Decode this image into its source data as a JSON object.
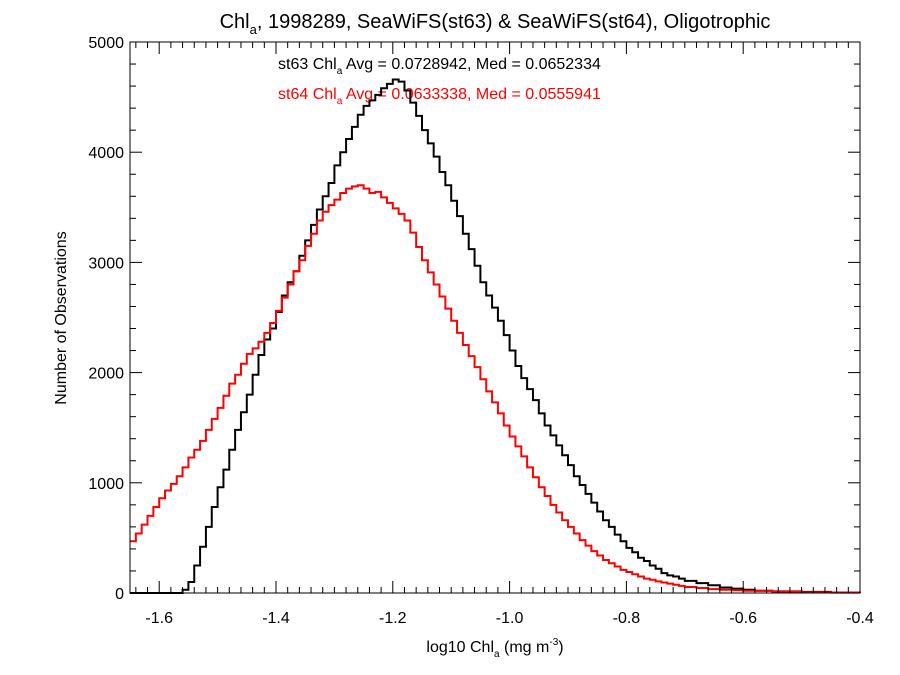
{
  "chart_data": {
    "type": "line",
    "title": {
      "main": "Chl",
      "sub": "a",
      "rest": ", 1998289, SeaWiFS(st63) & SeaWiFS(st64), Oligotrophic"
    },
    "xlabel": {
      "main": "log10 Chl",
      "sub": "a",
      "rest": " (mg m",
      "sup": "-3",
      "end": ")"
    },
    "ylabel": "Number of Observations",
    "xlim": [
      -1.65,
      -0.4
    ],
    "ylim": [
      0,
      5000
    ],
    "x_ticks": [
      -1.6,
      -1.4,
      -1.2,
      -1.0,
      -0.8,
      -0.6,
      -0.4
    ],
    "x_tick_labels": [
      "-1.6",
      "-1.4",
      "-1.2",
      "-1.0",
      "-0.8",
      "-0.6",
      "-0.4"
    ],
    "y_ticks": [
      0,
      1000,
      2000,
      3000,
      4000,
      5000
    ],
    "y_tick_labels": [
      "0",
      "1000",
      "2000",
      "3000",
      "4000",
      "5000"
    ],
    "grid": false,
    "step": true,
    "annotations": [
      {
        "color": "#000000",
        "prefix": "st63 Chl",
        "sub": "a",
        "suffix": " Avg = 0.0728942, Med = 0.0652334"
      },
      {
        "color": "#ff0000",
        "prefix": "st64 Chl",
        "sub": "a",
        "suffix": " Avg = 0.0633338, Med = 0.0555941"
      }
    ],
    "series": [
      {
        "color": "#000000",
        "points": [
          [
            -1.65,
            0
          ],
          [
            -1.57,
            0
          ],
          [
            -1.56,
            30
          ],
          [
            -1.55,
            100
          ],
          [
            -1.54,
            250
          ],
          [
            -1.53,
            420
          ],
          [
            -1.52,
            600
          ],
          [
            -1.51,
            780
          ],
          [
            -1.5,
            960
          ],
          [
            -1.49,
            1120
          ],
          [
            -1.48,
            1300
          ],
          [
            -1.47,
            1480
          ],
          [
            -1.46,
            1640
          ],
          [
            -1.45,
            1800
          ],
          [
            -1.44,
            1980
          ],
          [
            -1.43,
            2160
          ],
          [
            -1.42,
            2300
          ],
          [
            -1.41,
            2400
          ],
          [
            -1.4,
            2550
          ],
          [
            -1.39,
            2700
          ],
          [
            -1.38,
            2820
          ],
          [
            -1.37,
            2920
          ],
          [
            -1.36,
            3060
          ],
          [
            -1.35,
            3200
          ],
          [
            -1.34,
            3340
          ],
          [
            -1.33,
            3480
          ],
          [
            -1.32,
            3600
          ],
          [
            -1.31,
            3720
          ],
          [
            -1.3,
            3880
          ],
          [
            -1.29,
            4000
          ],
          [
            -1.28,
            4120
          ],
          [
            -1.27,
            4230
          ],
          [
            -1.26,
            4340
          ],
          [
            -1.25,
            4420
          ],
          [
            -1.24,
            4470
          ],
          [
            -1.23,
            4520
          ],
          [
            -1.22,
            4580
          ],
          [
            -1.21,
            4620
          ],
          [
            -1.2,
            4660
          ],
          [
            -1.19,
            4640
          ],
          [
            -1.18,
            4560
          ],
          [
            -1.17,
            4450
          ],
          [
            -1.16,
            4330
          ],
          [
            -1.15,
            4200
          ],
          [
            -1.14,
            4080
          ],
          [
            -1.13,
            3960
          ],
          [
            -1.12,
            3820
          ],
          [
            -1.11,
            3700
          ],
          [
            -1.1,
            3560
          ],
          [
            -1.09,
            3420
          ],
          [
            -1.08,
            3260
          ],
          [
            -1.07,
            3120
          ],
          [
            -1.06,
            2970
          ],
          [
            -1.05,
            2820
          ],
          [
            -1.04,
            2700
          ],
          [
            -1.03,
            2590
          ],
          [
            -1.02,
            2470
          ],
          [
            -1.01,
            2340
          ],
          [
            -1.0,
            2200
          ],
          [
            -0.99,
            2060
          ],
          [
            -0.98,
            1950
          ],
          [
            -0.97,
            1850
          ],
          [
            -0.96,
            1750
          ],
          [
            -0.95,
            1630
          ],
          [
            -0.94,
            1520
          ],
          [
            -0.93,
            1430
          ],
          [
            -0.92,
            1340
          ],
          [
            -0.91,
            1250
          ],
          [
            -0.9,
            1160
          ],
          [
            -0.89,
            1060
          ],
          [
            -0.88,
            980
          ],
          [
            -0.87,
            900
          ],
          [
            -0.86,
            820
          ],
          [
            -0.85,
            740
          ],
          [
            -0.84,
            660
          ],
          [
            -0.83,
            600
          ],
          [
            -0.82,
            530
          ],
          [
            -0.81,
            470
          ],
          [
            -0.8,
            410
          ],
          [
            -0.79,
            370
          ],
          [
            -0.78,
            320
          ],
          [
            -0.77,
            290
          ],
          [
            -0.76,
            250
          ],
          [
            -0.75,
            220
          ],
          [
            -0.74,
            180
          ],
          [
            -0.73,
            160
          ],
          [
            -0.72,
            150
          ],
          [
            -0.71,
            130
          ],
          [
            -0.7,
            110
          ],
          [
            -0.68,
            90
          ],
          [
            -0.66,
            70
          ],
          [
            -0.64,
            50
          ],
          [
            -0.62,
            40
          ],
          [
            -0.6,
            30
          ],
          [
            -0.58,
            20
          ],
          [
            -0.55,
            15
          ],
          [
            -0.5,
            10
          ],
          [
            -0.45,
            5
          ],
          [
            -0.4,
            0
          ]
        ]
      },
      {
        "color": "#ff0000",
        "points": [
          [
            -1.65,
            470
          ],
          [
            -1.64,
            540
          ],
          [
            -1.63,
            620
          ],
          [
            -1.62,
            700
          ],
          [
            -1.61,
            780
          ],
          [
            -1.6,
            860
          ],
          [
            -1.59,
            930
          ],
          [
            -1.58,
            990
          ],
          [
            -1.57,
            1060
          ],
          [
            -1.56,
            1140
          ],
          [
            -1.55,
            1230
          ],
          [
            -1.54,
            1300
          ],
          [
            -1.53,
            1380
          ],
          [
            -1.52,
            1480
          ],
          [
            -1.51,
            1580
          ],
          [
            -1.5,
            1680
          ],
          [
            -1.49,
            1790
          ],
          [
            -1.48,
            1900
          ],
          [
            -1.47,
            1980
          ],
          [
            -1.46,
            2080
          ],
          [
            -1.45,
            2170
          ],
          [
            -1.44,
            2220
          ],
          [
            -1.43,
            2280
          ],
          [
            -1.42,
            2360
          ],
          [
            -1.41,
            2450
          ],
          [
            -1.4,
            2560
          ],
          [
            -1.39,
            2680
          ],
          [
            -1.38,
            2800
          ],
          [
            -1.37,
            2920
          ],
          [
            -1.36,
            3020
          ],
          [
            -1.35,
            3150
          ],
          [
            -1.34,
            3260
          ],
          [
            -1.33,
            3380
          ],
          [
            -1.32,
            3460
          ],
          [
            -1.31,
            3520
          ],
          [
            -1.3,
            3570
          ],
          [
            -1.29,
            3630
          ],
          [
            -1.28,
            3670
          ],
          [
            -1.27,
            3690
          ],
          [
            -1.26,
            3700
          ],
          [
            -1.25,
            3670
          ],
          [
            -1.24,
            3630
          ],
          [
            -1.23,
            3640
          ],
          [
            -1.22,
            3590
          ],
          [
            -1.21,
            3540
          ],
          [
            -1.2,
            3490
          ],
          [
            -1.19,
            3440
          ],
          [
            -1.18,
            3380
          ],
          [
            -1.17,
            3270
          ],
          [
            -1.16,
            3140
          ],
          [
            -1.15,
            3020
          ],
          [
            -1.14,
            2910
          ],
          [
            -1.13,
            2800
          ],
          [
            -1.12,
            2690
          ],
          [
            -1.11,
            2580
          ],
          [
            -1.1,
            2470
          ],
          [
            -1.09,
            2360
          ],
          [
            -1.08,
            2250
          ],
          [
            -1.07,
            2150
          ],
          [
            -1.06,
            2050
          ],
          [
            -1.05,
            1940
          ],
          [
            -1.04,
            1830
          ],
          [
            -1.03,
            1730
          ],
          [
            -1.02,
            1630
          ],
          [
            -1.01,
            1520
          ],
          [
            -1.0,
            1420
          ],
          [
            -0.99,
            1330
          ],
          [
            -0.98,
            1240
          ],
          [
            -0.97,
            1140
          ],
          [
            -0.96,
            1050
          ],
          [
            -0.95,
            960
          ],
          [
            -0.94,
            880
          ],
          [
            -0.93,
            800
          ],
          [
            -0.92,
            730
          ],
          [
            -0.91,
            660
          ],
          [
            -0.9,
            600
          ],
          [
            -0.89,
            540
          ],
          [
            -0.88,
            480
          ],
          [
            -0.87,
            430
          ],
          [
            -0.86,
            380
          ],
          [
            -0.85,
            340
          ],
          [
            -0.84,
            300
          ],
          [
            -0.83,
            270
          ],
          [
            -0.82,
            240
          ],
          [
            -0.81,
            210
          ],
          [
            -0.8,
            190
          ],
          [
            -0.79,
            170
          ],
          [
            -0.78,
            150
          ],
          [
            -0.77,
            130
          ],
          [
            -0.76,
            120
          ],
          [
            -0.75,
            105
          ],
          [
            -0.74,
            95
          ],
          [
            -0.73,
            85
          ],
          [
            -0.72,
            75
          ],
          [
            -0.71,
            65
          ],
          [
            -0.7,
            55
          ],
          [
            -0.68,
            45
          ],
          [
            -0.66,
            35
          ],
          [
            -0.64,
            30
          ],
          [
            -0.62,
            25
          ],
          [
            -0.6,
            20
          ],
          [
            -0.55,
            12
          ],
          [
            -0.5,
            6
          ],
          [
            -0.45,
            3
          ],
          [
            -0.4,
            0
          ]
        ]
      }
    ]
  }
}
